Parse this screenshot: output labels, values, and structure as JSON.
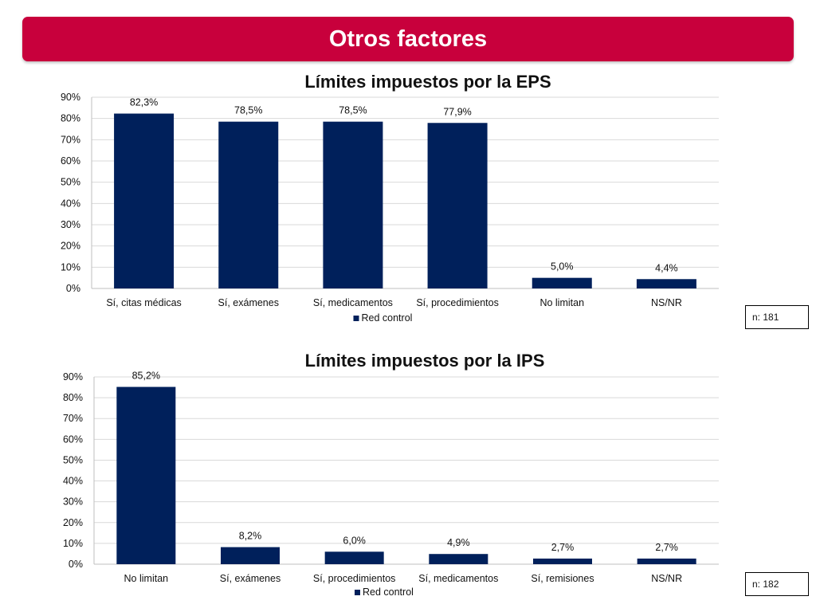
{
  "header": {
    "title": "Otros factores"
  },
  "colors": {
    "banner": "#c8003c",
    "bar": "#00205b",
    "grid": "#d9d9d9",
    "axis": "#bfbfbf"
  },
  "chart_data": [
    {
      "type": "bar",
      "title": "Límites impuestos por la EPS",
      "categories": [
        "Sí, citas médicas",
        "Sí, exámenes",
        "Sí, medicamentos",
        "Sí, procedimientos",
        "No limitan",
        "NS/NR"
      ],
      "series": [
        {
          "name": "Red control",
          "values": [
            82.3,
            78.5,
            78.5,
            77.9,
            5.0,
            4.4
          ],
          "labels": [
            "82,3%",
            "78,5%",
            "78,5%",
            "77,9%",
            "5,0%",
            "4,4%"
          ]
        }
      ],
      "ylim": [
        0,
        90
      ],
      "yticks": [
        "0%",
        "10%",
        "20%",
        "30%",
        "40%",
        "50%",
        "60%",
        "70%",
        "80%",
        "90%"
      ],
      "grid": true,
      "legend": "bottom",
      "note": "n: 181"
    },
    {
      "type": "bar",
      "title": "Límites impuestos por la IPS",
      "categories": [
        "No limitan",
        "Sí, exámenes",
        "Sí, procedimientos",
        "Sí, medicamentos",
        "Sí, remisiones",
        "NS/NR"
      ],
      "series": [
        {
          "name": "Red control",
          "values": [
            85.2,
            8.2,
            6.0,
            4.9,
            2.7,
            2.7
          ],
          "labels": [
            "85,2%",
            "8,2%",
            "6,0%",
            "4,9%",
            "2,7%",
            "2,7%"
          ]
        }
      ],
      "ylim": [
        0,
        90
      ],
      "yticks": [
        "0%",
        "10%",
        "20%",
        "30%",
        "40%",
        "50%",
        "60%",
        "70%",
        "80%",
        "90%"
      ],
      "grid": true,
      "legend": "bottom",
      "note": "n: 182"
    }
  ]
}
